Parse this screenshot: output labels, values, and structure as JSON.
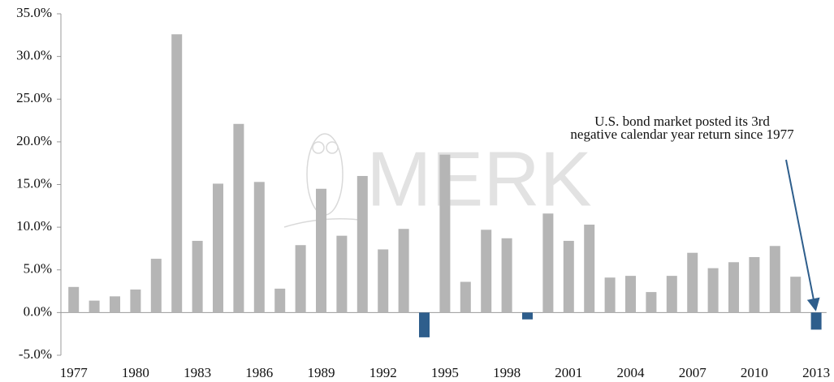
{
  "chart_data": {
    "type": "bar",
    "categories": [
      "1977",
      null,
      null,
      "1980",
      null,
      null,
      "1983",
      null,
      null,
      "1986",
      null,
      null,
      "1989",
      null,
      null,
      "1992",
      null,
      null,
      "1995",
      null,
      null,
      "1998",
      null,
      null,
      "2001",
      null,
      null,
      "2004",
      null,
      null,
      "2007",
      null,
      null,
      "2010",
      null,
      null,
      "2013"
    ],
    "values": [
      3.0,
      1.4,
      1.9,
      2.7,
      6.3,
      32.6,
      8.4,
      15.1,
      22.1,
      15.3,
      2.8,
      7.9,
      14.5,
      9.0,
      16.0,
      7.4,
      9.8,
      -2.9,
      18.5,
      3.6,
      9.7,
      8.7,
      -0.8,
      11.6,
      8.4,
      10.3,
      4.1,
      4.3,
      2.4,
      4.3,
      7.0,
      5.2,
      5.9,
      6.5,
      7.8,
      4.2,
      -2.0
    ],
    "color": "#b5b5b5",
    "negative_color": "#2e5e8c",
    "ylim": [
      -5,
      35
    ],
    "yticks": [
      {
        "value": -5,
        "label": "-5.0%"
      },
      {
        "value": 0,
        "label": "0.0%"
      },
      {
        "value": 5,
        "label": "5.0%"
      },
      {
        "value": 10,
        "label": "10.0%"
      },
      {
        "value": 15,
        "label": "15.0%"
      },
      {
        "value": 20,
        "label": "20.0%"
      },
      {
        "value": 25,
        "label": "25.0%"
      },
      {
        "value": 30,
        "label": "30.0%"
      },
      {
        "value": 35,
        "label": "35.0%"
      }
    ],
    "grid": false,
    "annotation": [
      "U.S. bond market posted its 3rd",
      "negative calendar year return since 1977"
    ],
    "watermark": "MERK"
  }
}
